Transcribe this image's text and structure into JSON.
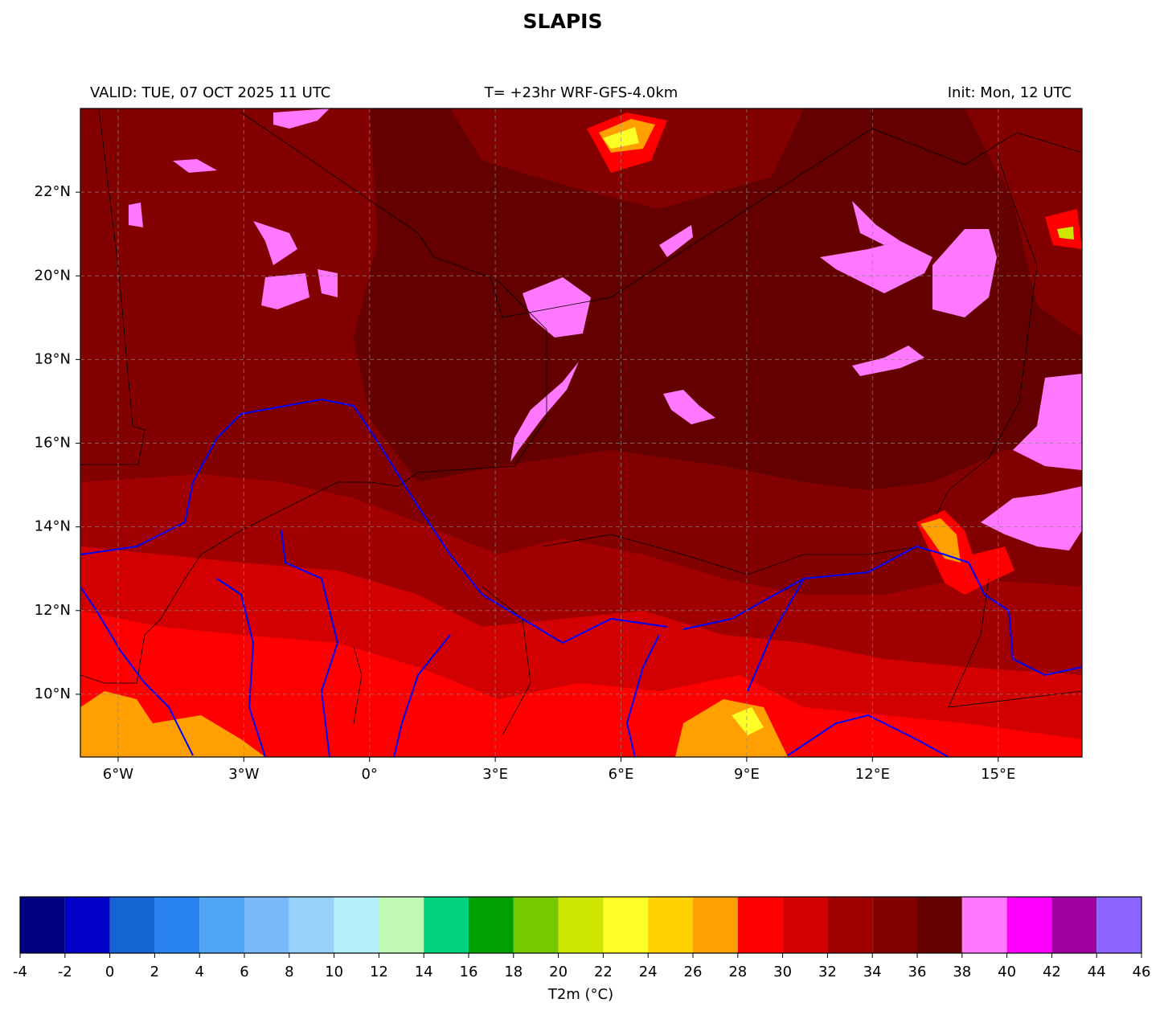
{
  "title": "SLAPIS",
  "header": {
    "valid": "VALID: TUE, 07 OCT 2025 11 UTC",
    "model": "T= +23hr WRF-GFS-4.0km",
    "init": "Init: Mon, 12 UTC"
  },
  "map": {
    "lon_extent": [
      -6.9,
      17
    ],
    "lat_extent": [
      8.5,
      24
    ],
    "grid": true,
    "lon_ticks": [
      {
        "value": -6,
        "label": "6°W"
      },
      {
        "value": -3,
        "label": "3°W"
      },
      {
        "value": 0,
        "label": "0°"
      },
      {
        "value": 3,
        "label": "3°E"
      },
      {
        "value": 6,
        "label": "6°E"
      },
      {
        "value": 9,
        "label": "9°E"
      },
      {
        "value": 12,
        "label": "12°E"
      },
      {
        "value": 15,
        "label": "15°E"
      }
    ],
    "lat_ticks": [
      {
        "value": 22,
        "label": "22°N"
      },
      {
        "value": 20,
        "label": "20°N"
      },
      {
        "value": 18,
        "label": "18°N"
      },
      {
        "value": 16,
        "label": "16°N"
      },
      {
        "value": 14,
        "label": "14°N"
      },
      {
        "value": 12,
        "label": "12°N"
      },
      {
        "value": 10,
        "label": "10°N"
      }
    ]
  },
  "colorbar": {
    "label": "T2m (°C)",
    "ticks": [
      -4,
      -2,
      0,
      2,
      4,
      6,
      8,
      10,
      12,
      14,
      16,
      18,
      20,
      22,
      24,
      26,
      28,
      30,
      32,
      34,
      36,
      38,
      40,
      42,
      44,
      46
    ],
    "colors": [
      "#000080",
      "#0000c8",
      "#1464d2",
      "#2882f0",
      "#50a5f5",
      "#78b9fa",
      "#96d2fa",
      "#b4f0fa",
      "#c0fab4",
      "#00d27d",
      "#00a000",
      "#78c800",
      "#cce600",
      "#ffff28",
      "#ffd200",
      "#ffa000",
      "#ff0000",
      "#d20000",
      "#a00000",
      "#820000",
      "#640000",
      "#ff78ff",
      "#ff00ff",
      "#a000a0",
      "#8c64ff"
    ]
  }
}
